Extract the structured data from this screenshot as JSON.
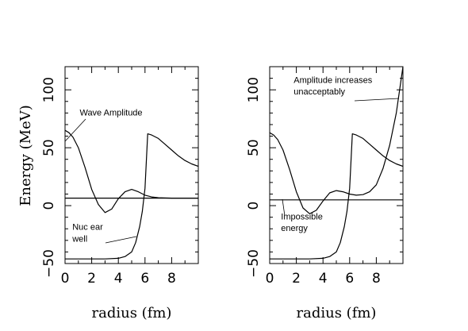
{
  "chart_data": [
    {
      "type": "line",
      "xlabel": "radius (fm)",
      "ylabel": "Energy (MeV)",
      "xlim": [
        0,
        10
      ],
      "ylim": [
        -50,
        120
      ],
      "x_ticks": [
        0,
        2,
        4,
        6,
        8
      ],
      "y_ticks": [
        -50,
        0,
        50,
        100
      ],
      "series": [
        {
          "role": "potential-well",
          "x": [
            0,
            1,
            2,
            3,
            4,
            4.5,
            5,
            5.3,
            5.6,
            5.8,
            6.0,
            6.2,
            6.5,
            7,
            7.5,
            8,
            8.5,
            9,
            9.5,
            10
          ],
          "y": [
            -46,
            -46,
            -46,
            -46,
            -45.5,
            -44,
            -40,
            -32,
            -18,
            -5,
            15,
            62,
            61,
            58,
            53,
            48,
            43,
            39,
            36,
            34
          ]
        },
        {
          "role": "wave-amplitude",
          "x": [
            0,
            0.3,
            0.6,
            1.0,
            1.5,
            2.0,
            2.5,
            3.0,
            3.5,
            4.0,
            4.5,
            5.0,
            5.5,
            6.0,
            6.5,
            7.0,
            7.5,
            8.0,
            9.0,
            10
          ],
          "y": [
            65,
            63,
            59,
            50,
            33,
            14,
            1,
            -6,
            -3,
            6,
            12,
            14,
            12,
            9,
            7.5,
            6.8,
            6.6,
            6.5,
            6.5,
            6.5
          ]
        },
        {
          "role": "energy-level",
          "x": [
            0,
            10
          ],
          "y": [
            6.5,
            6.5
          ]
        }
      ],
      "annotations": [
        {
          "text": "Wave Amplitude",
          "x": 1.1,
          "y": 78
        },
        {
          "text": "Nuc ear",
          "x": 0.55,
          "y": -21
        },
        {
          "text": "well",
          "x": 0.55,
          "y": -31
        }
      ]
    },
    {
      "type": "line",
      "xlabel": "radius (fm)",
      "ylabel": "",
      "xlim": [
        0,
        10
      ],
      "ylim": [
        -50,
        120
      ],
      "x_ticks": [
        0,
        2,
        4,
        6,
        8
      ],
      "y_ticks": [
        -50,
        0,
        50,
        100
      ],
      "series": [
        {
          "role": "potential-well",
          "x": [
            0,
            1,
            2,
            3,
            4,
            4.5,
            5,
            5.3,
            5.6,
            5.8,
            6.0,
            6.2,
            6.5,
            7,
            7.5,
            8,
            8.5,
            9,
            9.5,
            10
          ],
          "y": [
            -46,
            -46,
            -46,
            -46,
            -45.5,
            -44,
            -40,
            -32,
            -18,
            -5,
            15,
            62,
            61,
            58,
            53,
            48,
            43,
            39,
            36,
            34
          ]
        },
        {
          "role": "wave-amplitude",
          "x": [
            0,
            0.3,
            0.6,
            1.0,
            1.5,
            2.0,
            2.5,
            3.0,
            3.5,
            4.0,
            4.5,
            5.0,
            5.5,
            6.0,
            6.5,
            7.0,
            7.5,
            8.0,
            8.5,
            9.0,
            9.5,
            10
          ],
          "y": [
            63,
            61,
            57,
            48,
            31,
            12,
            -2,
            -7,
            -4,
            4,
            11,
            13,
            12,
            10,
            9,
            9.5,
            12,
            18,
            32,
            52,
            80,
            120
          ]
        },
        {
          "role": "energy-level",
          "x": [
            0,
            10
          ],
          "y": [
            5,
            5
          ]
        }
      ],
      "annotations": [
        {
          "text": "Amplitude increases",
          "x": 1.8,
          "y": 106
        },
        {
          "text": "unacceptably",
          "x": 1.8,
          "y": 96
        },
        {
          "text": "Impossible",
          "x": 0.85,
          "y": -12
        },
        {
          "text": "energy",
          "x": 0.85,
          "y": -22
        }
      ]
    }
  ]
}
